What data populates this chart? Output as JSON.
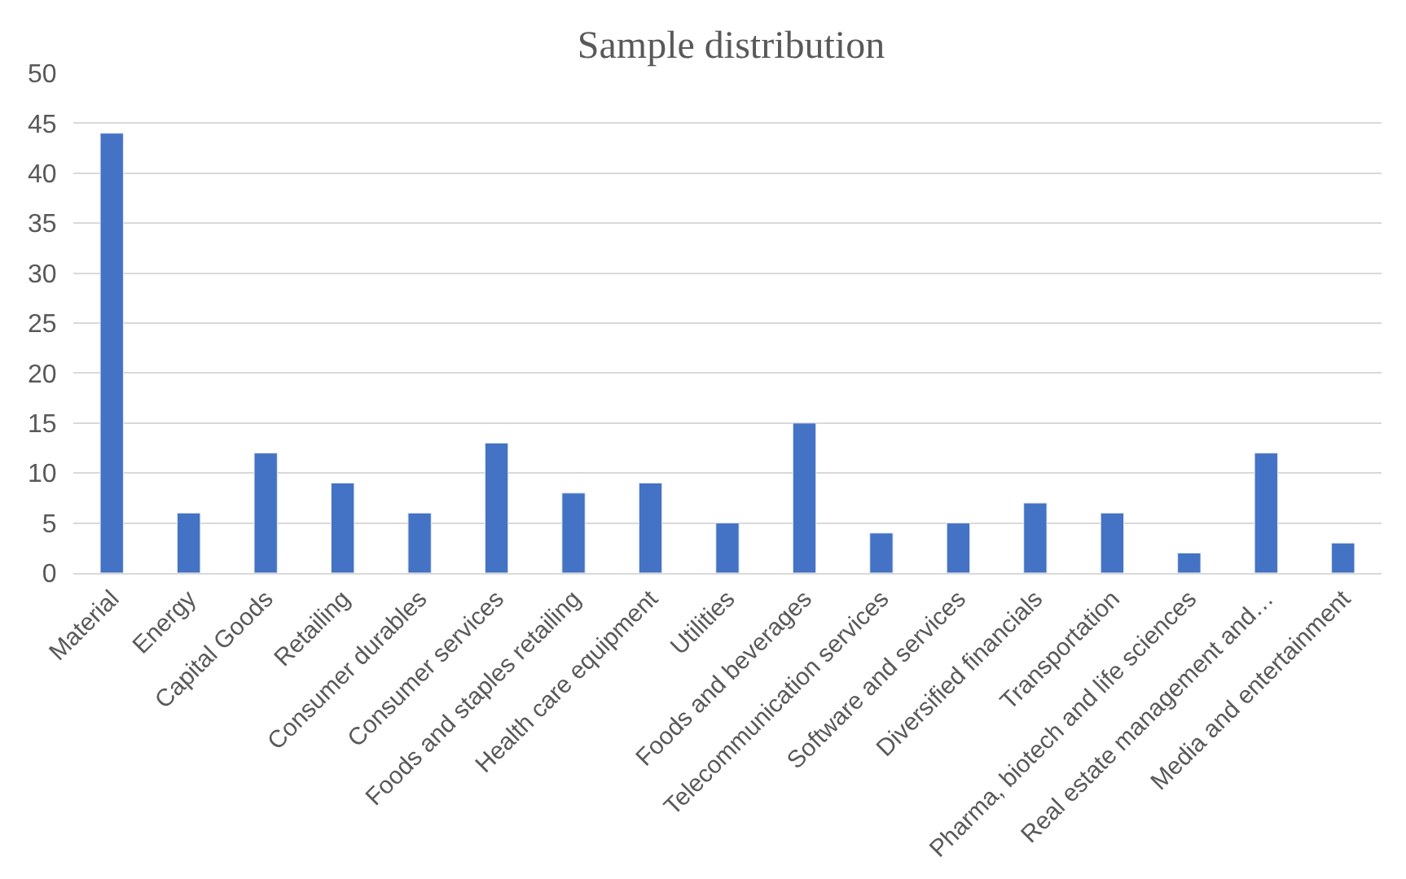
{
  "chart_data": {
    "type": "bar",
    "title": "Sample distribution",
    "categories": [
      "Material",
      "Energy",
      "Capital Goods",
      "Retailing",
      "Consumer durables",
      "Consumer services",
      "Foods and staples retailing",
      "Health care equipment",
      "Utilities",
      "Foods and beverages",
      "Telecommunication services",
      "Software and services",
      "Diversified financials",
      "Transportation",
      "Pharma, biotech and life sciences",
      "Real estate management and…",
      "Media and entertainment"
    ],
    "values": [
      44,
      6,
      12,
      9,
      6,
      13,
      8,
      9,
      5,
      15,
      4,
      5,
      7,
      6,
      2,
      12,
      3
    ],
    "color": "#4472c4",
    "ylim": [
      0,
      50
    ],
    "yticks": [
      0,
      5,
      10,
      15,
      20,
      25,
      30,
      35,
      40,
      45,
      50
    ],
    "grid": "y"
  }
}
